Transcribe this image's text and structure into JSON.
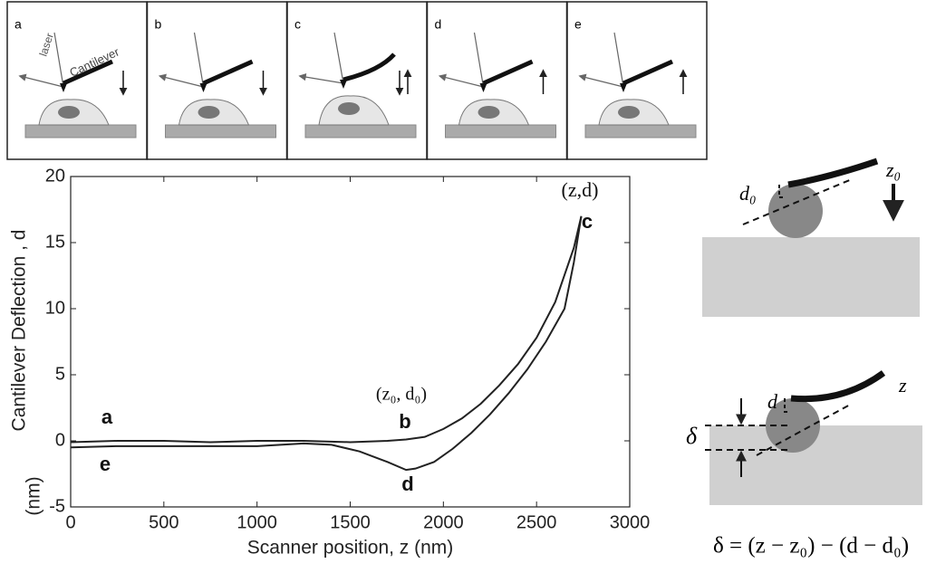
{
  "panels": [
    {
      "label": "a",
      "laser": "laser",
      "cantilever": "Cantilever"
    },
    {
      "label": "b"
    },
    {
      "label": "c"
    },
    {
      "label": "d"
    },
    {
      "label": "e"
    }
  ],
  "chart_data": {
    "type": "line",
    "y_label": [
      "Cantilever Deflection , d",
      "(nm)"
    ],
    "x_label": "Scanner position, z (nm)",
    "xlim": [
      0,
      3000
    ],
    "xticks": [
      0,
      500,
      1000,
      1500,
      2000,
      2500,
      3000
    ],
    "ylim": [
      -5,
      20
    ],
    "yticks": [
      -5,
      0,
      5,
      10,
      15,
      20
    ],
    "grid": false,
    "series": [
      {
        "color": "#222222",
        "x": [
          0,
          250,
          500,
          750,
          1000,
          1250,
          1500,
          1700,
          1800,
          1900,
          2000,
          2100,
          2200,
          2300,
          2400,
          2500,
          2600,
          2700,
          2740
        ],
        "values": [
          -0.1,
          0,
          0,
          -0.1,
          0,
          0,
          -0.1,
          0,
          0.1,
          0.3,
          0.9,
          1.7,
          2.8,
          4.2,
          5.8,
          7.8,
          10.5,
          14.6,
          17
        ]
      },
      {
        "color": "#222222",
        "x": [
          0,
          250,
          500,
          750,
          1000,
          1250,
          1400,
          1550,
          1700,
          1800,
          1850,
          1950,
          2050,
          2150,
          2250,
          2350,
          2450,
          2550,
          2650,
          2700,
          2740
        ],
        "values": [
          -0.5,
          -0.4,
          -0.4,
          -0.4,
          -0.4,
          -0.2,
          -0.3,
          -0.8,
          -1.6,
          -2.2,
          -2.1,
          -1.6,
          -0.6,
          0.6,
          2,
          3.6,
          5.4,
          7.5,
          10,
          13.5,
          17
        ]
      }
    ],
    "annotations": [
      "a",
      "b",
      "c",
      "d",
      "e",
      "(z₀, d₀)",
      "(z,d)"
    ]
  },
  "diagrams": {
    "top": {
      "d0": "d₀",
      "z0": "z₀"
    },
    "bottom": {
      "d": "d",
      "z": "z",
      "delta": "δ"
    },
    "formula": "δ = (z − z₀) − (d − d₀)"
  }
}
